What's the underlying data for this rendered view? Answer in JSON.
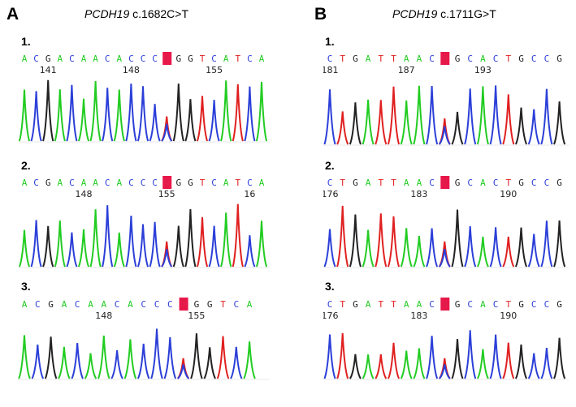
{
  "panels": [
    {
      "letter": "A",
      "gene": "PCDH19",
      "variant": "c.1682C>T",
      "tracks": [
        {
          "number": "1.",
          "bases": "ACGACAACACCCNGGTCATCA",
          "highlight": 12,
          "positions": [
            {
              "label": "141",
              "at": 2
            },
            {
              "label": "148",
              "at": 9
            },
            {
              "label": "155",
              "at": 16
            }
          ]
        },
        {
          "number": "2.",
          "bases": "ACGACAACACCCNGGTCATCA",
          "highlight": 12,
          "positions": [
            {
              "label": "148",
              "at": 5
            },
            {
              "label": "155",
              "at": 12
            },
            {
              "label": "16",
              "at": 19
            }
          ]
        },
        {
          "number": "3.",
          "bases": "ACGACAACACCCNGGTCA",
          "highlight": 12,
          "positions": [
            {
              "label": "148",
              "at": 6
            },
            {
              "label": "155",
              "at": 13
            }
          ]
        }
      ]
    },
    {
      "letter": "B",
      "gene": "PCDH19",
      "variant": "c.1711G>T",
      "tracks": [
        {
          "number": "1.",
          "bases": "CTGATTAACNGCACTGCCG",
          "highlight": 9,
          "positions": [
            {
              "label": "181",
              "at": 0
            },
            {
              "label": "187",
              "at": 6
            },
            {
              "label": "193",
              "at": 12
            }
          ]
        },
        {
          "number": "2.",
          "bases": "CTGATTAACNGCACTGCCG",
          "highlight": 9,
          "positions": [
            {
              "label": "176",
              "at": 0
            },
            {
              "label": "183",
              "at": 7
            },
            {
              "label": "190",
              "at": 14
            }
          ]
        },
        {
          "number": "3.",
          "bases": "CTGATTAACNGCACTGCCG",
          "highlight": 9,
          "positions": [
            {
              "label": "176",
              "at": 0
            },
            {
              "label": "183",
              "at": 7
            },
            {
              "label": "190",
              "at": 14
            }
          ]
        }
      ]
    }
  ],
  "colors": {
    "A": "#22cc22",
    "C": "#2b3fd8",
    "G": "#222222",
    "T": "#e02020",
    "N": "#e0204a",
    "highlight": "#e8174a"
  }
}
